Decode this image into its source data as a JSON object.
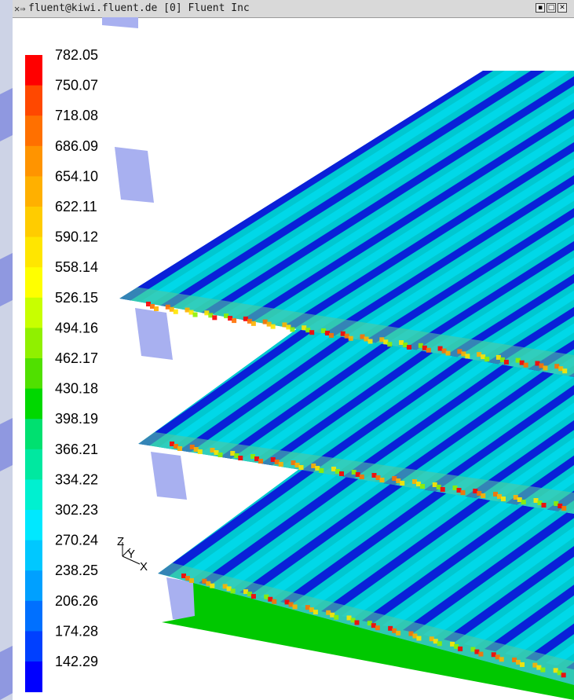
{
  "window": {
    "title": "fluent@kiwi.fluent.de [0] Fluent Inc"
  },
  "titlebar_buttons": [
    "minimize",
    "maximize",
    "close"
  ],
  "colorbar": {
    "labels": [
      "782.05",
      "750.07",
      "718.08",
      "686.09",
      "654.10",
      "622.11",
      "590.12",
      "558.14",
      "526.15",
      "494.16",
      "462.17",
      "430.18",
      "398.19",
      "366.21",
      "334.22",
      "302.23",
      "270.24",
      "238.25",
      "206.26",
      "174.28",
      "142.29"
    ],
    "colors": [
      "#ff0000",
      "#ff4800",
      "#ff7000",
      "#ff9400",
      "#ffb000",
      "#ffcc00",
      "#ffe600",
      "#ffff00",
      "#c8ff00",
      "#90f000",
      "#50e000",
      "#00d800",
      "#00e070",
      "#00e8a0",
      "#00f0d0",
      "#00e8ff",
      "#00c8ff",
      "#00a0ff",
      "#0070ff",
      "#0040ff",
      "#0000ff"
    ]
  },
  "axes": {
    "z": "Z",
    "y": "Y",
    "x": "X"
  },
  "colors": {
    "band_dark": "#0a20d8",
    "band_mid": "#14c8c8",
    "band_light": "#00d8e8",
    "base": "#00c800",
    "inlet": "#a8b0f0"
  }
}
